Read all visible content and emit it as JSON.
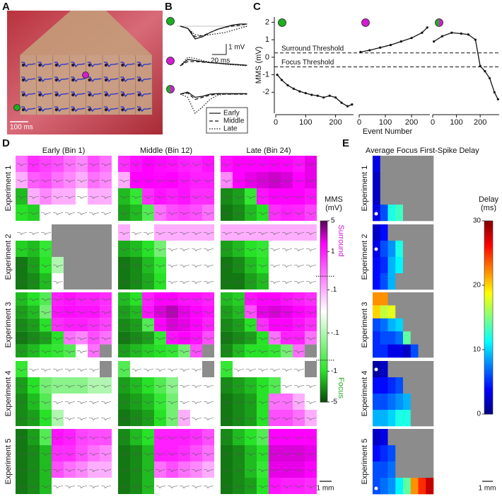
{
  "panel_labels": [
    "A",
    "B",
    "C",
    "D",
    "E"
  ],
  "site_colors": {
    "focus": "#1fae1f",
    "surround": "#d21dd2"
  },
  "panel_a": {
    "scale_bar": "100 ms"
  },
  "panel_b": {
    "scale_bar_y": "1 mV",
    "scale_bar_x": "20 ms",
    "ylim": [
      -2,
      1
    ],
    "traces": [
      {
        "site": "focus",
        "series": [
          {
            "name": "Early",
            "style": "solid",
            "values": [
              0,
              -0.2,
              -1.2,
              -1.0,
              -0.6,
              -0.3,
              -0.1,
              0.1,
              0.2,
              0.2
            ]
          },
          {
            "name": "Middle",
            "style": "dashed",
            "values": [
              0,
              -0.2,
              -1.0,
              -0.9,
              -0.6,
              -0.3,
              -0.1,
              0,
              0.1,
              0.2
            ]
          },
          {
            "name": "Late",
            "style": "dotted",
            "values": [
              0,
              -0.2,
              -0.8,
              -0.9,
              -0.8,
              -0.7,
              -0.6,
              -0.4,
              -0.2,
              0
            ]
          }
        ]
      },
      {
        "site": "surround",
        "series": [
          {
            "name": "Early",
            "style": "solid",
            "values": [
              0,
              0.6,
              0.5,
              0.4,
              0.3,
              0.25,
              0.2,
              0.15,
              0.1,
              0.05
            ]
          },
          {
            "name": "Middle",
            "style": "dashed",
            "values": [
              0,
              0.4,
              0.4,
              0.35,
              0.3,
              0.25,
              0.2,
              0.15,
              0.1,
              0.05
            ]
          },
          {
            "name": "Late",
            "style": "dotted",
            "values": [
              0,
              0.8,
              0.7,
              0.5,
              0.35,
              0.25,
              0.15,
              0.1,
              0.05,
              0
            ]
          }
        ]
      },
      {
        "site": "both",
        "series": [
          {
            "name": "Early",
            "style": "solid",
            "values": [
              0,
              0.2,
              -0.3,
              -0.2,
              0,
              0.05,
              0.05,
              0.05,
              0.05,
              0.05
            ]
          },
          {
            "name": "Middle",
            "style": "dashed",
            "values": [
              0,
              0.1,
              -0.5,
              -0.3,
              -0.1,
              0,
              0,
              0,
              0,
              0
            ]
          },
          {
            "name": "Late",
            "style": "dotted",
            "values": [
              0,
              -0.3,
              -1.8,
              -1.2,
              -0.5,
              -0.1,
              0,
              0,
              0,
              0
            ]
          }
        ]
      }
    ]
  },
  "panel_c": {
    "ylabel": "MMS (mV)",
    "xlabel": "Event Number",
    "ylim": [
      -3.2,
      2.3
    ],
    "yticks": [
      -2,
      -1,
      0,
      1,
      2
    ],
    "xticks": [
      0,
      100,
      200
    ],
    "thresholds": [
      {
        "label": "Surround Threshold",
        "value": 0.25
      },
      {
        "label": "Focus Threshold",
        "value": -0.55
      }
    ],
    "subplots": [
      {
        "site": "focus",
        "xlim": [
          0,
          260
        ],
        "x": [
          5,
          20,
          40,
          60,
          80,
          100,
          120,
          140,
          160,
          180,
          200,
          220,
          240,
          255
        ],
        "y": [
          -1,
          -1.3,
          -1.6,
          -1.8,
          -1.95,
          -2.05,
          -2.15,
          -2.2,
          -2.3,
          -2.2,
          -2.3,
          -2.6,
          -2.8,
          -2.7
        ]
      },
      {
        "site": "surround",
        "xlim": [
          0,
          270
        ],
        "x": [
          5,
          40,
          80,
          120,
          160,
          200,
          240,
          260
        ],
        "y": [
          0.3,
          0.4,
          0.55,
          0.7,
          0.9,
          1.1,
          1.4,
          1.7
        ]
      },
      {
        "site": "both",
        "xlim": [
          0,
          280
        ],
        "x": [
          5,
          40,
          80,
          120,
          150,
          180,
          200,
          220,
          240,
          260,
          275
        ],
        "y": [
          0.9,
          1.2,
          1.4,
          1.35,
          1.3,
          1.0,
          -0.5,
          -0.8,
          -1.2,
          -2,
          -2.4
        ]
      }
    ]
  },
  "panel_d": {
    "column_titles": [
      "Early (Bin 1)",
      "Middle (Bin 12)",
      "Late (Bin 24)"
    ],
    "experiments": [
      "Experiment 1",
      "Experiment 2",
      "Experiment 3",
      "Experiment 4",
      "Experiment 5"
    ],
    "scale_bar": "1 mm",
    "colorbar": {
      "label_lines": [
        "MMS",
        "(mV)"
      ],
      "lim": [
        -5,
        5
      ],
      "ticks": [
        5,
        1,
        {
          "value": 0.1,
          "label": ".1"
        },
        {
          "value": -0.1,
          "label": "-.1"
        },
        -1,
        -5
      ],
      "surround_label": "Surround",
      "focus_label": "Focus"
    },
    "maps": [
      [
        [
          [
            0.3,
            0.8,
            0.6,
            0.5,
            0.3,
            0.2,
            0.5,
            0.3
          ],
          [
            0.1,
            0.4,
            0.5,
            0.3,
            0.2,
            0.1,
            0.3,
            0.2
          ],
          [
            -1.5,
            0.1,
            0.2,
            0.1,
            0.1,
            0,
            0.1,
            0.1
          ],
          [
            -1,
            -1.2,
            0,
            0,
            0,
            0,
            0,
            0
          ]
        ],
        [
          [
            0.8,
            1.2,
            1.5,
            1.3,
            1.2,
            1.0,
            0.9,
            1.2
          ],
          [
            0.1,
            1.5,
            1.5,
            1.4,
            1.5,
            1.2,
            1.0,
            1.0
          ],
          [
            -1.5,
            -0.8,
            0.8,
            1.2,
            1.0,
            1.2,
            0.8,
            0.8
          ],
          [
            -2,
            -1.5,
            -0.5,
            0.3,
            0.5,
            0.6,
            0.5,
            0.3
          ]
        ],
        [
          [
            1.2,
            1.5,
            1.5,
            1.5,
            1.6,
            1.5,
            1.2,
            1.8
          ],
          [
            0.2,
            1.5,
            1.8,
            2,
            2.2,
            2.0,
            1.5,
            1.8
          ],
          [
            -2.5,
            -2,
            -0.8,
            1.2,
            1.5,
            1.5,
            1.5,
            1.2
          ],
          [
            -3,
            -2.5,
            -1.5,
            -1,
            0.8,
            1,
            0.9,
            0.6
          ]
        ]
      ],
      [
        [
          [
            0,
            0,
            0,
            null,
            null,
            null,
            null,
            null
          ],
          [
            -1.2,
            -1.5,
            -0.8,
            null,
            null,
            null,
            null,
            null
          ],
          [
            -3,
            -2,
            -1,
            -0.1,
            null,
            null,
            null,
            null
          ],
          [
            -3,
            -2.5,
            -1.5,
            0,
            null,
            null,
            null,
            null
          ]
        ],
        [
          [
            0.1,
            0,
            0,
            0.1,
            0.1,
            0.1,
            0.1,
            0.1
          ],
          [
            -1.8,
            -1.5,
            -1,
            -0.3,
            0,
            0,
            0,
            0
          ],
          [
            -3,
            -2.5,
            -1.5,
            -0.8,
            0,
            0,
            0,
            0
          ],
          [
            -3,
            -2.5,
            -1.8,
            -1,
            0,
            0,
            0,
            0
          ]
        ],
        [
          [
            0.1,
            0.1,
            0.1,
            0.1,
            0.1,
            0.1,
            0.1,
            0.1
          ],
          [
            -2,
            -1.5,
            -1,
            -0.8,
            0,
            0,
            0,
            0
          ],
          [
            -3,
            -2.5,
            -1.5,
            -1,
            0,
            0,
            0,
            0
          ],
          [
            -3,
            -3,
            -2,
            -1.5,
            0,
            0,
            0,
            0
          ]
        ]
      ],
      [
        [
          [
            -1.5,
            -1,
            -0.5,
            1,
            1.2,
            1,
            1,
            0.8
          ],
          [
            -2,
            -1.5,
            -0.3,
            1.2,
            1.3,
            1.2,
            1.2,
            0.8
          ],
          [
            -2.5,
            -2,
            -1,
            0.8,
            1,
            1,
            0.8,
            0.6
          ],
          [
            -3,
            -2.5,
            -2,
            -1,
            0.3,
            0.2,
            0.5,
            0.3
          ],
          [
            -2,
            -1.5,
            -1,
            -0.8,
            -0.5,
            0,
            0.3,
            null
          ]
        ],
        [
          [
            -1.5,
            -1,
            1,
            1.5,
            1.5,
            1.2,
            1.2,
            1
          ],
          [
            -2,
            -1.5,
            1.2,
            2,
            2.5,
            1.8,
            1.5,
            1.2
          ],
          [
            -2.5,
            -2,
            -0.5,
            1.5,
            2,
            1.8,
            1.5,
            1
          ],
          [
            -3,
            -2.5,
            -2,
            -0.8,
            1.2,
            1.5,
            1.2,
            0.5
          ],
          [
            -2,
            -1.5,
            -1.2,
            -1,
            -0.8,
            -0.3,
            0.5,
            null
          ]
        ],
        [
          [
            -1.5,
            -1.2,
            1.2,
            1.5,
            1.5,
            1.2,
            1,
            0.8
          ],
          [
            -2,
            -1.5,
            0.5,
            1.8,
            2,
            1.8,
            1.5,
            1.2
          ],
          [
            -2.5,
            -2,
            -1,
            0.8,
            1.5,
            1.5,
            1.2,
            0.8
          ],
          [
            -3,
            -2.5,
            -2,
            -1,
            0.3,
            1,
            1,
            0.3
          ],
          [
            -2.5,
            -1.5,
            -1,
            -1,
            -0.8,
            -0.3,
            0.3,
            null
          ]
        ]
      ],
      [
        [
          [
            -0.8,
            0,
            0,
            0,
            0,
            0,
            0,
            null
          ],
          [
            -2,
            -1,
            -0.3,
            -0.2,
            -0.2,
            -0.2,
            -0.1,
            -0.1
          ],
          [
            -2.5,
            -1.5,
            -0.5,
            0,
            0,
            0,
            0,
            0
          ],
          [
            -2.5,
            -2,
            -1,
            -0.1,
            0,
            0,
            0,
            0
          ]
        ],
        [
          [
            -0.5,
            0,
            0,
            0,
            0,
            0,
            0,
            null
          ],
          [
            -2,
            -1.5,
            -1,
            -0.5,
            -0.2,
            0,
            0,
            0
          ],
          [
            -2.5,
            -2,
            -1.5,
            -0.8,
            -0.3,
            0,
            0,
            0
          ],
          [
            -3,
            -2.5,
            -2,
            -1,
            -0.3,
            0.1,
            0,
            0
          ]
        ],
        [
          [
            -0.8,
            0,
            0,
            0,
            0,
            0,
            0,
            null
          ],
          [
            -2.5,
            -2,
            -1.5,
            -1,
            -0.5,
            0,
            0,
            0
          ],
          [
            -3,
            -2.5,
            -2,
            -1,
            0.3,
            0.3,
            0.1,
            0
          ],
          [
            -3,
            -2.5,
            -2,
            -1,
            0.5,
            0.5,
            0.3,
            0.1
          ]
        ]
      ],
      [
        [
          [
            -3,
            -2,
            -0.5,
            1.2,
            1,
            0.6,
            0.5,
            0.5
          ],
          [
            -3,
            -2.5,
            -1.5,
            0.8,
            0.8,
            0.5,
            0.3,
            0.2
          ],
          [
            -3,
            -2.5,
            -1.5,
            0.5,
            0.3,
            0.2,
            0.1,
            0.1
          ],
          [
            -3,
            -2.5,
            -1.5,
            0,
            0,
            0,
            0,
            0
          ]
        ],
        [
          [
            -2.5,
            -1.5,
            -1,
            1,
            1,
            1,
            0.8,
            0.5
          ],
          [
            -3,
            -2.5,
            -1.5,
            1,
            1,
            0.8,
            0.5,
            0.3
          ],
          [
            -3,
            -2.5,
            -1.5,
            0.3,
            0.5,
            0.3,
            0.2,
            0.1
          ],
          [
            -3,
            -2.5,
            -1.5,
            0,
            0,
            0,
            0,
            0
          ]
        ],
        [
          [
            -2.5,
            -1.5,
            -1,
            -0.5,
            1.5,
            1.5,
            1.5,
            1.5
          ],
          [
            -3,
            -2.5,
            -1.5,
            -1,
            2,
            2,
            2,
            1.8
          ],
          [
            -3,
            -2.5,
            -1.5,
            -0.8,
            1.8,
            1.8,
            1.8,
            1.5
          ],
          [
            -3,
            -2.5,
            -2,
            -1,
            1.2,
            1,
            1,
            0.8
          ]
        ]
      ]
    ]
  },
  "panel_e": {
    "title": "Average Focus First-Spike Delay",
    "scale_bar": "1 mm",
    "colorbar": {
      "label_lines": [
        "Delay",
        "(ms)"
      ],
      "lim": [
        0,
        30
      ],
      "ticks": [
        0,
        10,
        20,
        30
      ]
    },
    "maps": [
      [
        [
          3,
          null,
          null,
          null,
          null,
          null,
          null,
          null
        ],
        [
          2,
          null,
          null,
          null,
          null,
          null,
          null,
          null
        ],
        [
          2,
          null,
          null,
          null,
          null,
          null,
          null,
          null
        ],
        [
          3,
          6,
          12,
          13,
          null,
          null,
          null,
          null
        ]
      ],
      [
        [
          2,
          4,
          null,
          null,
          null,
          null,
          null,
          null
        ],
        [
          3,
          6,
          8,
          12,
          null,
          null,
          null,
          null
        ],
        [
          4,
          5,
          9,
          11,
          null,
          null,
          null,
          null
        ],
        [
          4,
          6,
          9,
          null,
          null,
          null,
          null,
          null
        ]
      ],
      [
        [
          22,
          22,
          null,
          null,
          null,
          null,
          null,
          null
        ],
        [
          20,
          17,
          18,
          null,
          null,
          null,
          null,
          null
        ],
        [
          6,
          7,
          9,
          10,
          null,
          null,
          null,
          null
        ],
        [
          5,
          6,
          6,
          7,
          14,
          null,
          null,
          null
        ],
        [
          5,
          5,
          3,
          3,
          2,
          6,
          null,
          null
        ]
      ],
      [
        [
          1,
          2,
          null,
          null,
          null,
          null,
          null,
          null
        ],
        [
          4,
          4,
          5,
          6,
          null,
          null,
          null,
          null
        ],
        [
          6,
          6,
          7,
          8,
          9,
          null,
          null,
          null
        ],
        [
          9,
          9,
          10,
          12,
          12,
          null,
          null,
          null
        ]
      ],
      [
        [
          2,
          3,
          null,
          null,
          null,
          null,
          null,
          null
        ],
        [
          4,
          5,
          6,
          null,
          null,
          null,
          null,
          null
        ],
        [
          6,
          6,
          7,
          null,
          null,
          null,
          null,
          null
        ],
        [
          6,
          7,
          8,
          11,
          14,
          22,
          25,
          28
        ]
      ]
    ]
  }
}
